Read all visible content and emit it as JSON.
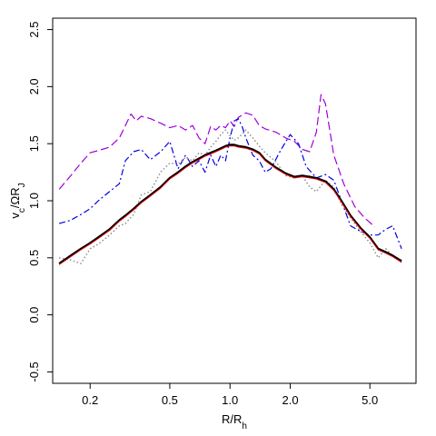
{
  "chart_data": {
    "type": "line",
    "x_scale": "log",
    "grid": false,
    "xlim": [
      0.13,
      8.5
    ],
    "ylim": [
      -0.6,
      2.6
    ],
    "x_ticks": [
      0.2,
      0.5,
      1.0,
      2.0,
      5.0
    ],
    "x_tick_labels": [
      "0.2",
      "0.5",
      "1.0",
      "2.0",
      "5.0"
    ],
    "y_ticks": [
      -0.5,
      0.0,
      0.5,
      1.0,
      1.5,
      2.0,
      2.5
    ],
    "y_tick_labels": [
      "-0.5",
      "0.0",
      "0.5",
      "1.0",
      "1.5",
      "2.0",
      "2.5"
    ],
    "xlabel": {
      "base": "R/R",
      "sub": "h"
    },
    "ylabel": {
      "v": "v",
      "c": "c",
      "mid": "/ΩR",
      "j": "J"
    },
    "series": [
      {
        "color": "#a000d8",
        "dash": "9,4",
        "width": 1.2,
        "x": [
          0.14,
          0.16,
          0.18,
          0.2,
          0.22,
          0.25,
          0.28,
          0.32,
          0.34,
          0.36,
          0.4,
          0.45,
          0.5,
          0.55,
          0.6,
          0.65,
          0.7,
          0.75,
          0.8,
          0.85,
          0.9,
          0.95,
          1.0,
          1.05,
          1.1,
          1.2,
          1.3,
          1.4,
          1.5,
          1.7,
          1.9,
          2.1,
          2.3,
          2.5,
          2.7,
          2.85,
          3.0,
          3.3,
          3.7,
          4.2,
          4.7,
          5.3
        ],
        "y": [
          1.1,
          1.22,
          1.33,
          1.42,
          1.44,
          1.47,
          1.55,
          1.76,
          1.7,
          1.74,
          1.72,
          1.68,
          1.64,
          1.66,
          1.62,
          1.66,
          1.55,
          1.5,
          1.65,
          1.62,
          1.66,
          1.64,
          1.7,
          1.65,
          1.73,
          1.77,
          1.75,
          1.66,
          1.63,
          1.6,
          1.55,
          1.52,
          1.45,
          1.43,
          1.6,
          1.93,
          1.85,
          1.4,
          1.15,
          0.95,
          0.85,
          0.77
        ]
      },
      {
        "color": "#0000e0",
        "dash": "7,3,2,3",
        "width": 1.2,
        "x": [
          0.14,
          0.16,
          0.18,
          0.2,
          0.22,
          0.25,
          0.28,
          0.3,
          0.33,
          0.36,
          0.4,
          0.45,
          0.5,
          0.55,
          0.6,
          0.65,
          0.7,
          0.75,
          0.8,
          0.85,
          0.9,
          0.95,
          1.0,
          1.05,
          1.1,
          1.15,
          1.2,
          1.3,
          1.4,
          1.5,
          1.6,
          1.8,
          2.0,
          2.2,
          2.4,
          2.7,
          3.0,
          3.3,
          3.6,
          4.0,
          4.5,
          5.0,
          5.5,
          6.0,
          6.5,
          7.2
        ],
        "y": [
          0.8,
          0.83,
          0.88,
          0.93,
          1.0,
          1.08,
          1.15,
          1.35,
          1.43,
          1.45,
          1.36,
          1.43,
          1.52,
          1.28,
          1.4,
          1.3,
          1.35,
          1.25,
          1.4,
          1.3,
          1.4,
          1.35,
          1.55,
          1.7,
          1.72,
          1.65,
          1.55,
          1.4,
          1.35,
          1.25,
          1.28,
          1.45,
          1.58,
          1.5,
          1.3,
          1.2,
          1.23,
          1.18,
          1.0,
          0.78,
          0.73,
          0.7,
          0.7,
          0.75,
          0.78,
          0.58
        ]
      },
      {
        "color": "#888888",
        "dash": "1.5,2.5",
        "width": 1.4,
        "x": [
          0.14,
          0.16,
          0.18,
          0.2,
          0.22,
          0.25,
          0.28,
          0.3,
          0.33,
          0.36,
          0.4,
          0.45,
          0.5,
          0.55,
          0.6,
          0.65,
          0.7,
          0.75,
          0.8,
          0.85,
          0.9,
          0.95,
          1.0,
          1.05,
          1.1,
          1.2,
          1.3,
          1.4,
          1.5,
          1.7,
          1.9,
          2.1,
          2.3,
          2.5,
          2.7,
          3.0,
          3.3,
          3.6,
          4.0,
          4.5,
          5.0,
          5.5,
          6.0,
          6.5,
          7.2
        ],
        "y": [
          0.5,
          0.48,
          0.45,
          0.58,
          0.62,
          0.7,
          0.78,
          0.8,
          0.88,
          1.05,
          1.08,
          1.25,
          1.33,
          1.32,
          1.38,
          1.35,
          1.42,
          1.4,
          1.47,
          1.52,
          1.58,
          1.62,
          1.57,
          1.53,
          1.55,
          1.62,
          1.55,
          1.48,
          1.42,
          1.34,
          1.22,
          1.2,
          1.22,
          1.12,
          1.08,
          1.18,
          1.12,
          0.97,
          0.85,
          0.73,
          0.63,
          0.5,
          0.58,
          0.52,
          0.48
        ]
      },
      {
        "color": "#000000",
        "dash": "",
        "width": 2.2,
        "x": [
          0.14,
          0.16,
          0.18,
          0.2,
          0.22,
          0.25,
          0.28,
          0.3,
          0.33,
          0.36,
          0.4,
          0.45,
          0.5,
          0.55,
          0.6,
          0.65,
          0.7,
          0.75,
          0.8,
          0.85,
          0.9,
          0.95,
          1.0,
          1.05,
          1.1,
          1.2,
          1.3,
          1.4,
          1.5,
          1.7,
          1.9,
          2.1,
          2.3,
          2.5,
          2.7,
          3.0,
          3.3,
          3.6,
          4.0,
          4.5,
          5.0,
          5.5,
          6.0,
          6.5,
          7.2
        ],
        "y": [
          0.45,
          0.52,
          0.58,
          0.63,
          0.68,
          0.75,
          0.83,
          0.87,
          0.93,
          0.99,
          1.05,
          1.12,
          1.2,
          1.25,
          1.3,
          1.34,
          1.37,
          1.4,
          1.42,
          1.44,
          1.46,
          1.48,
          1.49,
          1.49,
          1.48,
          1.47,
          1.45,
          1.42,
          1.36,
          1.29,
          1.24,
          1.21,
          1.22,
          1.21,
          1.2,
          1.17,
          1.1,
          1.0,
          0.87,
          0.76,
          0.68,
          0.58,
          0.55,
          0.52,
          0.47
        ]
      },
      {
        "color": "#e00000",
        "dash": "",
        "width": 1.0,
        "x": [
          0.14,
          0.16,
          0.18,
          0.2,
          0.22,
          0.25,
          0.28,
          0.3,
          0.33,
          0.36,
          0.4,
          0.45,
          0.5,
          0.55,
          0.6,
          0.65,
          0.7,
          0.75,
          0.8,
          0.85,
          0.9,
          0.95,
          1.0,
          1.05,
          1.1,
          1.2,
          1.3,
          1.4,
          1.5,
          1.7,
          1.9,
          2.1,
          2.3,
          2.5,
          2.7,
          3.0,
          3.3,
          3.6,
          4.0,
          4.5,
          5.0,
          5.5,
          6.0,
          6.5,
          7.2
        ],
        "y": [
          0.44,
          0.51,
          0.57,
          0.62,
          0.67,
          0.74,
          0.82,
          0.86,
          0.92,
          0.98,
          1.04,
          1.11,
          1.19,
          1.24,
          1.29,
          1.33,
          1.36,
          1.39,
          1.41,
          1.43,
          1.45,
          1.47,
          1.48,
          1.48,
          1.47,
          1.46,
          1.44,
          1.41,
          1.35,
          1.28,
          1.23,
          1.2,
          1.21,
          1.2,
          1.19,
          1.16,
          1.09,
          0.99,
          0.86,
          0.75,
          0.67,
          0.57,
          0.54,
          0.51,
          0.46
        ]
      }
    ]
  }
}
